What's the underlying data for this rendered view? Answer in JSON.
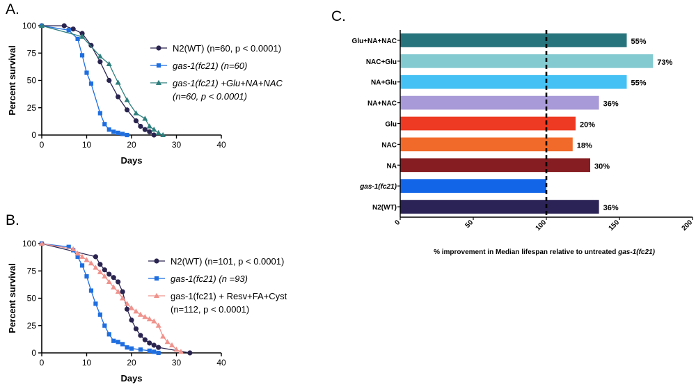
{
  "colors": {
    "n2": "#2a2450",
    "gas1": "#1f6ee0",
    "trioA": "#2e7f7d",
    "trioB": "#f0938d"
  },
  "chart_data": [
    {
      "panel": "A.",
      "type": "line",
      "xlabel": "Days",
      "ylabel": "Percent survival",
      "xlim": [
        0,
        40
      ],
      "ylim": [
        0,
        100
      ],
      "xticks": [
        "0",
        "10",
        "20",
        "30",
        "40"
      ],
      "yticks": [
        "0",
        "25",
        "50",
        "75",
        "100"
      ],
      "legend": [
        {
          "lines": [
            "N2(WT) (n=60, p < 0.0001)"
          ],
          "italic": false
        },
        {
          "lines": [
            "gas-1(fc21) (n=60)"
          ],
          "italic": true
        },
        {
          "lines": [
            "gas-1(fc21) +Glu+NA+NAC",
            "(n=60, p < 0.0001)"
          ],
          "italic": true
        }
      ],
      "series": [
        {
          "name": "N2(WT) (n=60, p < 0.0001)",
          "marker": "circle",
          "color": "#2a2450",
          "x": [
            0,
            5,
            7,
            9,
            11,
            13,
            15,
            17,
            19,
            21,
            22,
            23,
            24,
            25
          ],
          "y": [
            100,
            100,
            97,
            93,
            82,
            67,
            50,
            35,
            23,
            13,
            8,
            5,
            3,
            0
          ]
        },
        {
          "name": "gas-1(fc21) (n=60)",
          "marker": "square",
          "color": "#1f6ee0",
          "x": [
            0,
            6,
            8,
            9,
            10,
            11,
            13,
            14,
            15,
            16,
            17,
            18,
            19
          ],
          "y": [
            100,
            96,
            88,
            73,
            57,
            47,
            20,
            10,
            5,
            3,
            2,
            1,
            0
          ]
        },
        {
          "name": "gas-1(fc21) +Glu+NA+NAC (n=60, p < 0.0001)",
          "marker": "triangle",
          "color": "#2e7f7d",
          "x": [
            0,
            9,
            13,
            15,
            17,
            19,
            21,
            23,
            24,
            25,
            26,
            27
          ],
          "y": [
            100,
            90,
            72,
            65,
            48,
            32,
            20,
            15,
            8,
            5,
            2,
            0
          ]
        }
      ]
    },
    {
      "panel": "B.",
      "type": "line",
      "xlabel": "Days",
      "ylabel": "Percent survival",
      "xlim": [
        0,
        40
      ],
      "ylim": [
        0,
        100
      ],
      "xticks": [
        "0",
        "10",
        "20",
        "30",
        "40"
      ],
      "yticks": [
        "0",
        "25",
        "50",
        "75",
        "100"
      ],
      "legend": [
        {
          "lines": [
            "N2(WT) (n=101, p < 0.0001)"
          ],
          "italic": false
        },
        {
          "lines": [
            "gas-1(fc21) (n =93)"
          ],
          "italic": true
        },
        {
          "lines": [
            "gas-1(fc21) + Resv+FA+Cyst",
            "(n=112, p < 0.0001)"
          ],
          "italic": false
        }
      ],
      "series": [
        {
          "name": "N2(WT) (n=101, p < 0.0001)",
          "marker": "circle",
          "color": "#2a2450",
          "x": [
            0,
            12,
            13,
            14,
            15,
            16,
            17,
            18,
            19,
            20,
            21,
            22,
            23,
            24,
            25,
            26,
            33
          ],
          "y": [
            100,
            88,
            81,
            76,
            72,
            69,
            65,
            56,
            40,
            30,
            22,
            16,
            12,
            9,
            7,
            5,
            0
          ]
        },
        {
          "name": "gas-1(fc21) (n =93)",
          "marker": "square",
          "color": "#1f6ee0",
          "x": [
            0,
            6,
            7,
            8,
            9,
            10,
            11,
            12,
            13,
            14,
            15,
            16,
            17,
            18,
            19,
            20,
            22,
            24,
            25,
            26
          ],
          "y": [
            100,
            97,
            94,
            88,
            80,
            70,
            57,
            45,
            35,
            25,
            17,
            11,
            10,
            8,
            5,
            4,
            3,
            2,
            1,
            0
          ]
        },
        {
          "name": "gas-1(fc21) + Resv+FA+Cyst (n=112, p < 0.0001)",
          "marker": "triangle",
          "color": "#f0938d",
          "x": [
            0,
            7,
            8,
            9,
            10,
            11,
            12,
            13,
            14,
            15,
            16,
            17,
            18,
            19,
            20,
            21,
            22,
            23,
            24,
            25,
            26,
            27,
            28,
            29,
            30,
            31
          ],
          "y": [
            100,
            95,
            91,
            88,
            85,
            82,
            78,
            74,
            70,
            65,
            60,
            56,
            50,
            45,
            41,
            38,
            35,
            33,
            31,
            29,
            25,
            15,
            10,
            7,
            3,
            1
          ]
        }
      ]
    },
    {
      "panel": "C.",
      "type": "bar",
      "orientation": "horizontal",
      "xlabel": "% improvement in Median lifespan relative to untreated ",
      "xlabel_italic": "gas-1(fc21)",
      "xlim": [
        0,
        200
      ],
      "xticks": [
        "0",
        "50",
        "100",
        "150",
        "200"
      ],
      "reference_line": 100,
      "bars": [
        {
          "label": "Glu+NA+NAC",
          "value": 155,
          "annotation": "55%",
          "color": "#27747c",
          "italic": false
        },
        {
          "label": "NAC+Glu",
          "value": 173,
          "annotation": "73%",
          "color": "#83c9d0",
          "italic": false
        },
        {
          "label": "NA+Glu",
          "value": 155,
          "annotation": "55%",
          "color": "#45c1f3",
          "italic": false
        },
        {
          "label": "NA+NAC",
          "value": 136,
          "annotation": "36%",
          "color": "#a89ad8",
          "italic": false
        },
        {
          "label": "Glu",
          "value": 120,
          "annotation": "20%",
          "color": "#ee3a22",
          "italic": false
        },
        {
          "label": "NAC",
          "value": 118,
          "annotation": "18%",
          "color": "#f26a2a",
          "italic": false
        },
        {
          "label": "NA",
          "value": 130,
          "annotation": "30%",
          "color": "#861d22",
          "italic": false
        },
        {
          "label": "gas-1(fc21)",
          "value": 100,
          "annotation": "",
          "color": "#1365e8",
          "italic": true
        },
        {
          "label": "N2(WT)",
          "value": 136,
          "annotation": "36%",
          "color": "#2b2356",
          "italic": false
        }
      ]
    }
  ]
}
